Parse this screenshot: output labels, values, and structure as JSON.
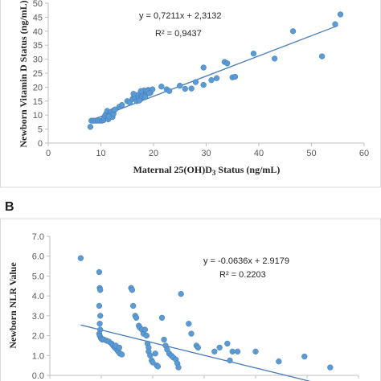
{
  "chart_data": [
    {
      "type": "scatter",
      "panel_label": "",
      "title": "",
      "xlabel": "Maternal 25(OH)D",
      "xlabel_sub": "3",
      "xlabel_tail": " Status (ng/mL)",
      "ylabel": "Newborn Vitamin D Status (ng/mL)",
      "xlim": [
        0,
        60
      ],
      "ylim": [
        0,
        50
      ],
      "xticks": [
        "0",
        "10",
        "20",
        "30",
        "40",
        "50",
        "60"
      ],
      "yticks": [
        "0",
        "5",
        "10",
        "15",
        "20",
        "25",
        "30",
        "35",
        "40",
        "45",
        "50"
      ],
      "equation": "y = 0,7211x + 2,3132",
      "r_squared": "R² = 0,9437",
      "trendline": {
        "slope": 0.7211,
        "intercept": 2.3132,
        "x_range": [
          8,
          55
        ]
      },
      "colors": {
        "points": "#5b9bd5",
        "trendline": "#4a7ebb"
      },
      "points": [
        [
          8,
          5.8
        ],
        [
          8.2,
          8
        ],
        [
          8.6,
          8
        ],
        [
          9,
          8
        ],
        [
          9.4,
          8
        ],
        [
          9.8,
          8
        ],
        [
          10.2,
          8
        ],
        [
          10.5,
          8.2
        ],
        [
          10.6,
          9
        ],
        [
          10.8,
          9.8
        ],
        [
          11,
          10.5
        ],
        [
          11.2,
          11.5
        ],
        [
          11.4,
          8.5
        ],
        [
          11.6,
          10
        ],
        [
          11.8,
          10.8
        ],
        [
          12,
          11.2
        ],
        [
          12.2,
          9.3
        ],
        [
          12.4,
          10.5
        ],
        [
          12.5,
          11.8
        ],
        [
          12.7,
          12
        ],
        [
          11.5,
          9.5
        ],
        [
          13.5,
          13
        ],
        [
          14,
          13.6
        ],
        [
          15,
          15
        ],
        [
          15.5,
          14.5
        ],
        [
          16,
          15.8
        ],
        [
          16.4,
          16.3
        ],
        [
          16.8,
          15
        ],
        [
          17,
          17.2
        ],
        [
          17.2,
          16.1
        ],
        [
          17.5,
          15.6
        ],
        [
          17.8,
          16.8
        ],
        [
          18,
          17.5
        ],
        [
          18.2,
          18.8
        ],
        [
          18.5,
          17.2
        ],
        [
          18.8,
          18
        ],
        [
          19,
          19
        ],
        [
          19.4,
          18
        ],
        [
          19.8,
          19.2
        ],
        [
          17.6,
          18.6
        ],
        [
          18.4,
          16.4
        ],
        [
          16.2,
          17.6
        ],
        [
          17.3,
          15.2
        ],
        [
          18.9,
          18.6
        ],
        [
          19.2,
          17.8
        ],
        [
          21.5,
          20.2
        ],
        [
          22.5,
          19.2
        ],
        [
          23,
          18.6
        ],
        [
          25,
          20.5
        ],
        [
          26,
          19.4
        ],
        [
          27.2,
          19.5
        ],
        [
          28,
          21.8
        ],
        [
          29.5,
          20.8
        ],
        [
          29.5,
          27
        ],
        [
          31,
          22.5
        ],
        [
          32,
          23.2
        ],
        [
          33.5,
          29
        ],
        [
          34,
          28.5
        ],
        [
          35,
          23.5
        ],
        [
          35.5,
          23.7
        ],
        [
          39,
          32
        ],
        [
          43,
          30.2
        ],
        [
          46.5,
          40
        ],
        [
          52,
          31
        ],
        [
          54.5,
          42.5
        ],
        [
          55.5,
          46
        ]
      ]
    },
    {
      "type": "scatter",
      "panel_label": "B",
      "title": "",
      "xlabel": "",
      "ylabel": "Newborn NLR Value",
      "xlim": [
        0,
        60
      ],
      "ylim": [
        0,
        7
      ],
      "yticks": [
        "0.0",
        "1.0",
        "2.0",
        "3.0",
        "4.0",
        "5.0",
        "6.0",
        "7.0"
      ],
      "equation": "y = -0.0636x + 2.9179",
      "r_squared": "R² = 0.2203",
      "trendline": {
        "slope": -0.0636,
        "intercept": 2.9179,
        "x_range": [
          6,
          55
        ]
      },
      "colors": {
        "points": "#5b9bd5",
        "trendline": "#4a7ebb"
      },
      "points": [
        [
          6,
          5.9
        ],
        [
          9.6,
          5.2
        ],
        [
          9.7,
          4.4
        ],
        [
          9.8,
          4.3
        ],
        [
          9.6,
          3.5
        ],
        [
          9.8,
          3.0
        ],
        [
          9.7,
          2.6
        ],
        [
          9.8,
          2.3
        ],
        [
          9.6,
          2.1
        ],
        [
          9.7,
          2.0
        ],
        [
          9.9,
          1.9
        ],
        [
          10,
          1.85
        ],
        [
          10.2,
          1.8
        ],
        [
          10.5,
          1.8
        ],
        [
          11,
          1.75
        ],
        [
          11.5,
          1.7
        ],
        [
          12,
          1.6
        ],
        [
          12.3,
          1.5
        ],
        [
          12.6,
          1.4
        ],
        [
          13,
          1.3
        ],
        [
          13.3,
          1.2
        ],
        [
          13.6,
          1.1
        ],
        [
          14,
          1.05
        ],
        [
          12.8,
          1.5
        ],
        [
          13.5,
          1.4
        ],
        [
          15.8,
          4.4
        ],
        [
          16,
          4.3
        ],
        [
          16.2,
          3.5
        ],
        [
          16.6,
          3.0
        ],
        [
          16.8,
          2.9
        ],
        [
          17.3,
          2.5
        ],
        [
          17.5,
          2.4
        ],
        [
          17.9,
          2.3
        ],
        [
          18.2,
          2.1
        ],
        [
          18.5,
          2.3
        ],
        [
          18.8,
          2.0
        ],
        [
          19,
          1.6
        ],
        [
          19.2,
          1.4
        ],
        [
          19.2,
          1.2
        ],
        [
          19.5,
          1.0
        ],
        [
          19.8,
          0.75
        ],
        [
          20,
          0.65
        ],
        [
          20.5,
          1.1
        ],
        [
          20.8,
          0.5
        ],
        [
          21,
          0.45
        ],
        [
          21.8,
          2.9
        ],
        [
          22.2,
          1.8
        ],
        [
          22.5,
          1.5
        ],
        [
          22.8,
          1.3
        ],
        [
          23.2,
          1.1
        ],
        [
          23.6,
          1.0
        ],
        [
          24,
          0.9
        ],
        [
          24.5,
          0.8
        ],
        [
          24.8,
          0.6
        ],
        [
          25,
          0.4
        ],
        [
          25.5,
          4.1
        ],
        [
          27,
          2.6
        ],
        [
          27.5,
          2.1
        ],
        [
          28.5,
          1.5
        ],
        [
          28.8,
          1.4
        ],
        [
          32,
          1.2
        ],
        [
          33,
          1.4
        ],
        [
          34.5,
          1.6
        ],
        [
          35.5,
          1.2
        ],
        [
          36.5,
          1.2
        ],
        [
          35,
          0.75
        ],
        [
          40,
          1.2
        ],
        [
          44.5,
          0.7
        ],
        [
          49.5,
          0.95
        ],
        [
          54.5,
          0.4
        ]
      ]
    }
  ]
}
